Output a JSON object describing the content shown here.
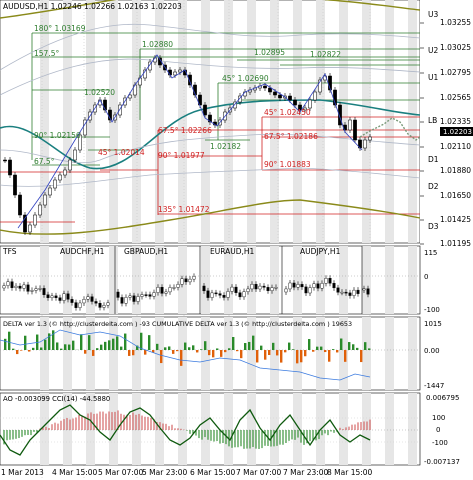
{
  "main_chart": {
    "header": "AUDUSD,H1  1.02246 1.02266 1.02163 1.02203",
    "current_price": "1.02203",
    "price_axis": [
      "1.03255",
      "1.03025",
      "1.02795",
      "1.02565",
      "1.02335",
      "1.02110",
      "1.01880",
      "1.01650",
      "1.01425",
      "1.01195"
    ],
    "band_labels": [
      "U3",
      "U2",
      "U1",
      "LB",
      "D1",
      "D2",
      "D3"
    ],
    "levels": [
      {
        "label": "180° 1.03169"
      },
      {
        "label": "157.5°"
      },
      {
        "label": "1.02880"
      },
      {
        "label": "1.02895"
      },
      {
        "label": "1.02822"
      },
      {
        "label": "45° 1.02690"
      },
      {
        "label": "1.02520"
      },
      {
        "label": "45° 1.02450"
      },
      {
        "label": "67.5° 1.02266"
      },
      {
        "label": "67.5° 1.02186"
      },
      {
        "label": "90° 1.02156"
      },
      {
        "label": "45° 1.02014"
      },
      {
        "label": "1.02182"
      },
      {
        "label": "90° 1.01977"
      },
      {
        "label": "90° 1.01883"
      },
      {
        "label": "67.5°"
      },
      {
        "label": "135° 1.01472"
      }
    ]
  },
  "tfs_panel": {
    "title": "TFS",
    "symbols": [
      "AUDCHF,H1",
      "GBPAUD,H1",
      "EURAUD,H1",
      "AUDJPY,H1"
    ],
    "axis": [
      "115",
      "0",
      "-100"
    ]
  },
  "delta_panel": {
    "title": "DELTA ver 1.3 (© http://clusterdelta.com )  -93  CUMULATIVE DELTA  ver 1.3 (© http://clusterdelta.com )  19653",
    "axis": [
      "1015",
      "0.00",
      "-1447"
    ]
  },
  "ao_panel": {
    "title": "AO -0.003099  CCI(14) -44.5880",
    "axis": [
      "0.006795",
      "100",
      "0",
      "-100",
      "-0.007137"
    ]
  },
  "time_axis": [
    "1 Mar 2013",
    "4 Mar 15:00",
    "5 Mar 07:00",
    "5 Mar 23:00",
    "6 Mar 15:00",
    "7 Mar 07:00",
    "7 Mar 23:00",
    "8 Mar 15:00"
  ]
}
